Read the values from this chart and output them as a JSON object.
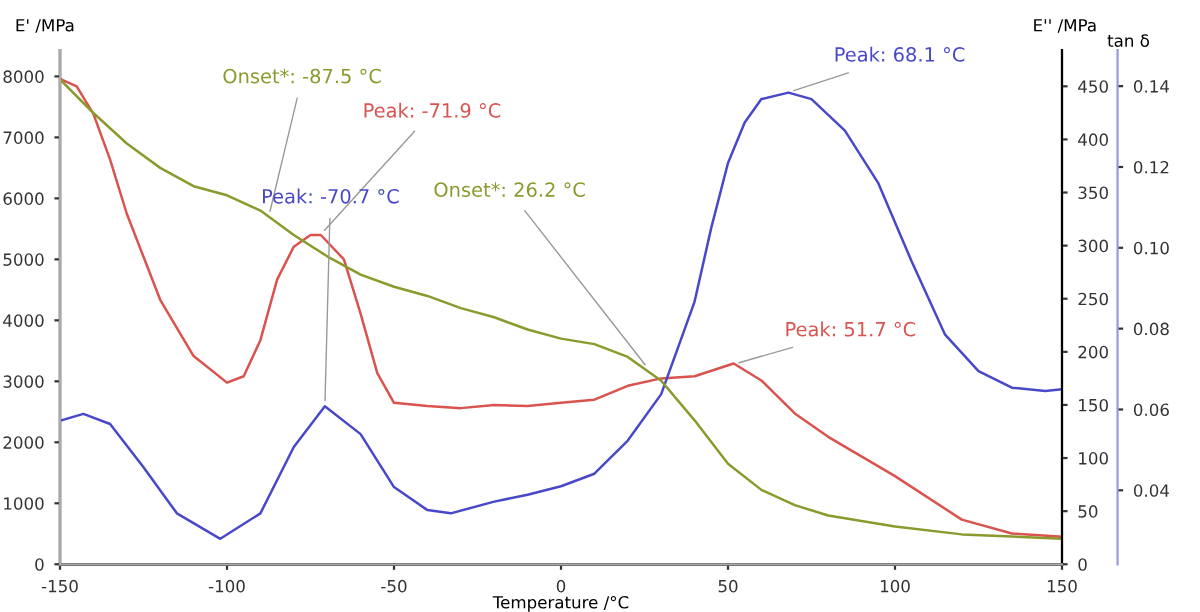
{
  "chart_data": {
    "type": "line",
    "xlabel": "Temperature /°C",
    "ylabel": "E' /MPa",
    "y2label": "E'' /MPa",
    "y3label": "tan δ",
    "xlim": [
      -150,
      150
    ],
    "xticks": [
      -150,
      -100,
      -50,
      0,
      50,
      100,
      150
    ],
    "ylim": [
      0,
      8430
    ],
    "yticks": [
      0,
      1000,
      2000,
      3000,
      4000,
      5000,
      6000,
      7000,
      8000
    ],
    "y2lim": [
      0,
      484
    ],
    "y2ticks": [
      0,
      50,
      100,
      150,
      200,
      250,
      300,
      350,
      400,
      450
    ],
    "y3lim": [
      0.0217,
      0.1489
    ],
    "y3ticks": [
      0.04,
      0.06,
      0.08,
      {
        "value": 0.1,
        "label": "0.10"
      },
      0.12,
      0.14
    ],
    "grid": false,
    "legend": false,
    "series": [
      {
        "color": "#8a9a2c",
        "axis": "y",
        "x": [
          -150,
          -140,
          -130,
          -120,
          -110,
          -100,
          -90,
          -80,
          -70,
          -60,
          -50,
          -40,
          -30,
          -20,
          -10,
          0,
          10,
          20,
          30,
          40,
          50,
          60,
          70,
          80,
          100,
          120,
          150
        ],
        "values": [
          7950,
          7400,
          6900,
          6500,
          6200,
          6050,
          5800,
          5400,
          5050,
          4750,
          4550,
          4400,
          4200,
          4050,
          3850,
          3700,
          3610,
          3400,
          3010,
          2360,
          1650,
          1220,
          970,
          800,
          620,
          490,
          420
        ]
      },
      {
        "color": "#d9534f",
        "axis": "y2",
        "x": [
          -150,
          -145,
          -140,
          -135,
          -130,
          -120,
          -110,
          -100,
          -95,
          -90,
          -85,
          -80,
          -75,
          -71.9,
          -65,
          -60,
          -55,
          -50,
          -40,
          -30,
          -20,
          -10,
          0,
          10,
          20,
          30,
          40,
          51.7,
          60,
          70,
          80,
          100,
          120,
          135,
          150
        ],
        "values": [
          457,
          450,
          424,
          381,
          330,
          249,
          196,
          171,
          177,
          211,
          268,
          299,
          310,
          310,
          287,
          236,
          180,
          152,
          149,
          147,
          150,
          149,
          152,
          155,
          168,
          175,
          177,
          189,
          173,
          142,
          120,
          83,
          42,
          29,
          26
        ]
      },
      {
        "color": "#4848c8",
        "axis": "y3",
        "x": [
          -150,
          -143,
          -135,
          -125,
          -115,
          -102,
          -90,
          -80,
          -70.7,
          -60,
          -50,
          -40,
          -33,
          -20,
          -10,
          0,
          10,
          20,
          30,
          40,
          45,
          50,
          55,
          60,
          68.1,
          75,
          85,
          95,
          105,
          115,
          125,
          135,
          145,
          150
        ],
        "values": [
          0.0572,
          0.0589,
          0.0564,
          0.0457,
          0.0343,
          0.028,
          0.0343,
          0.0507,
          0.0608,
          0.0539,
          0.0408,
          0.0351,
          0.0343,
          0.0372,
          0.0389,
          0.041,
          0.0441,
          0.0523,
          0.0638,
          0.0867,
          0.105,
          0.121,
          0.131,
          0.1368,
          0.1384,
          0.1368,
          0.129,
          0.116,
          0.0966,
          0.0785,
          0.0695,
          0.0654,
          0.0646,
          0.065
        ]
      }
    ],
    "annotations": [
      {
        "text": "Onset*: -87.5 °C",
        "x": -87.5,
        "y": 5700
      },
      {
        "text": "Peak: -71.9 °C",
        "x": -71.9,
        "y": 5410
      },
      {
        "text": "Peak: -70.7 °C",
        "x": -70.7,
        "y": 2590
      },
      {
        "text": "Onset*: 26.2 °C",
        "x": 26.2,
        "y": 3200
      },
      {
        "text": "Peak: 51.7 °C",
        "x": 51.7,
        "y": 3280
      },
      {
        "text": "Peak: 68.1 °C",
        "x": 68.1,
        "y": 7740
      }
    ]
  }
}
